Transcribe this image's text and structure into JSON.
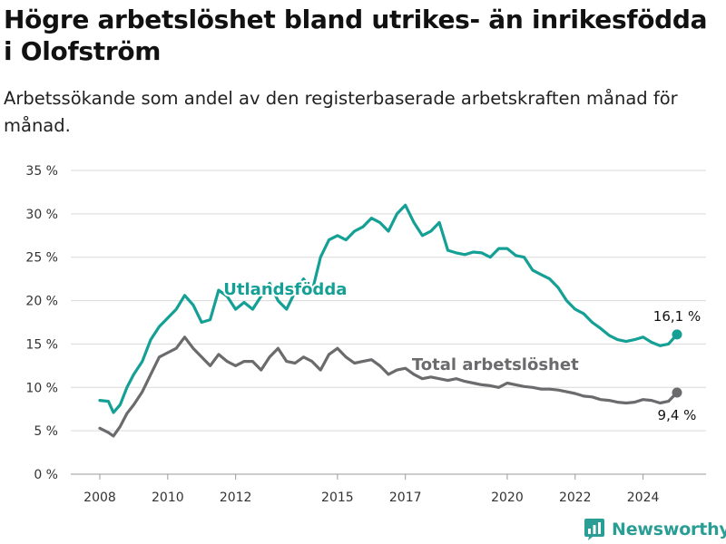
{
  "title": "Högre arbetslöshet bland utrikes- än inrikesfödda i Olofström",
  "subtitle": "Arbetssökande som andel av den registerbaserade arbetskraften månad för månad.",
  "brand": {
    "name": "Newsworthy",
    "icon": "bar-chart-icon",
    "color": "#2a9d95"
  },
  "colors": {
    "utlandsfodda": "#14a095",
    "total": "#6b6b6e",
    "grid": "#d9d9d9"
  },
  "chart_data": {
    "type": "line",
    "ylim": [
      0,
      35
    ],
    "yticks": [
      0,
      5,
      10,
      15,
      20,
      25,
      30,
      35
    ],
    "ytick_labels": [
      "0 %",
      "5 %",
      "10 %",
      "15 %",
      "20 %",
      "25 %",
      "30 %",
      "35 %"
    ],
    "xlim": [
      2007.5,
      2025.8
    ],
    "xticks": [
      2008,
      2010,
      2012,
      2015,
      2017,
      2020,
      2022,
      2024
    ],
    "xtick_labels": [
      "2008",
      "2010",
      "2012",
      "2015",
      "2017",
      "2020",
      "2022",
      "2024"
    ],
    "grid": "horizontal",
    "series": [
      {
        "name": "Utlandsfödda",
        "color": "#14a095",
        "end_label": "16,1 %",
        "points": [
          [
            2008.0,
            8.5
          ],
          [
            2008.25,
            8.4
          ],
          [
            2008.4,
            7.1
          ],
          [
            2008.6,
            8.0
          ],
          [
            2008.8,
            10.0
          ],
          [
            2009.0,
            11.5
          ],
          [
            2009.25,
            13.0
          ],
          [
            2009.5,
            15.5
          ],
          [
            2009.75,
            17.0
          ],
          [
            2010.0,
            18.0
          ],
          [
            2010.25,
            19.0
          ],
          [
            2010.5,
            20.6
          ],
          [
            2010.75,
            19.5
          ],
          [
            2011.0,
            17.5
          ],
          [
            2011.25,
            17.8
          ],
          [
            2011.5,
            21.2
          ],
          [
            2011.75,
            20.5
          ],
          [
            2012.0,
            19.0
          ],
          [
            2012.25,
            19.8
          ],
          [
            2012.5,
            19.0
          ],
          [
            2012.75,
            20.5
          ],
          [
            2013.0,
            22.0
          ],
          [
            2013.25,
            20.0
          ],
          [
            2013.5,
            19.0
          ],
          [
            2013.75,
            21.0
          ],
          [
            2014.0,
            22.5
          ],
          [
            2014.25,
            21.0
          ],
          [
            2014.5,
            25.0
          ],
          [
            2014.75,
            27.0
          ],
          [
            2015.0,
            27.5
          ],
          [
            2015.25,
            27.0
          ],
          [
            2015.5,
            28.0
          ],
          [
            2015.75,
            28.5
          ],
          [
            2016.0,
            29.5
          ],
          [
            2016.25,
            29.0
          ],
          [
            2016.5,
            28.0
          ],
          [
            2016.75,
            30.0
          ],
          [
            2017.0,
            31.0
          ],
          [
            2017.25,
            29.0
          ],
          [
            2017.5,
            27.5
          ],
          [
            2017.75,
            28.0
          ],
          [
            2018.0,
            29.0
          ],
          [
            2018.25,
            25.8
          ],
          [
            2018.5,
            25.5
          ],
          [
            2018.75,
            25.3
          ],
          [
            2019.0,
            25.6
          ],
          [
            2019.25,
            25.5
          ],
          [
            2019.5,
            25.0
          ],
          [
            2019.75,
            26.0
          ],
          [
            2020.0,
            26.0
          ],
          [
            2020.25,
            25.2
          ],
          [
            2020.5,
            25.0
          ],
          [
            2020.75,
            23.5
          ],
          [
            2021.0,
            23.0
          ],
          [
            2021.25,
            22.5
          ],
          [
            2021.5,
            21.5
          ],
          [
            2021.75,
            20.0
          ],
          [
            2022.0,
            19.0
          ],
          [
            2022.25,
            18.5
          ],
          [
            2022.5,
            17.5
          ],
          [
            2022.75,
            16.8
          ],
          [
            2023.0,
            16.0
          ],
          [
            2023.25,
            15.5
          ],
          [
            2023.5,
            15.3
          ],
          [
            2023.75,
            15.5
          ],
          [
            2024.0,
            15.8
          ],
          [
            2024.25,
            15.2
          ],
          [
            2024.5,
            14.8
          ],
          [
            2024.75,
            15.0
          ],
          [
            2025.0,
            16.1
          ]
        ]
      },
      {
        "name": "Total arbetslöshet",
        "color": "#6b6b6e",
        "end_label": "9,4 %",
        "points": [
          [
            2008.0,
            5.3
          ],
          [
            2008.25,
            4.8
          ],
          [
            2008.4,
            4.4
          ],
          [
            2008.6,
            5.5
          ],
          [
            2008.8,
            7.0
          ],
          [
            2009.0,
            8.0
          ],
          [
            2009.25,
            9.5
          ],
          [
            2009.5,
            11.5
          ],
          [
            2009.75,
            13.5
          ],
          [
            2010.0,
            14.0
          ],
          [
            2010.25,
            14.5
          ],
          [
            2010.5,
            15.8
          ],
          [
            2010.75,
            14.5
          ],
          [
            2011.0,
            13.5
          ],
          [
            2011.25,
            12.5
          ],
          [
            2011.5,
            13.8
          ],
          [
            2011.75,
            13.0
          ],
          [
            2012.0,
            12.5
          ],
          [
            2012.25,
            13.0
          ],
          [
            2012.5,
            13.0
          ],
          [
            2012.75,
            12.0
          ],
          [
            2013.0,
            13.5
          ],
          [
            2013.25,
            14.5
          ],
          [
            2013.5,
            13.0
          ],
          [
            2013.75,
            12.8
          ],
          [
            2014.0,
            13.5
          ],
          [
            2014.25,
            13.0
          ],
          [
            2014.5,
            12.0
          ],
          [
            2014.75,
            13.8
          ],
          [
            2015.0,
            14.5
          ],
          [
            2015.25,
            13.5
          ],
          [
            2015.5,
            12.8
          ],
          [
            2015.75,
            13.0
          ],
          [
            2016.0,
            13.2
          ],
          [
            2016.25,
            12.5
          ],
          [
            2016.5,
            11.5
          ],
          [
            2016.75,
            12.0
          ],
          [
            2017.0,
            12.2
          ],
          [
            2017.25,
            11.5
          ],
          [
            2017.5,
            11.0
          ],
          [
            2017.75,
            11.2
          ],
          [
            2018.0,
            11.0
          ],
          [
            2018.25,
            10.8
          ],
          [
            2018.5,
            11.0
          ],
          [
            2018.75,
            10.7
          ],
          [
            2019.0,
            10.5
          ],
          [
            2019.25,
            10.3
          ],
          [
            2019.5,
            10.2
          ],
          [
            2019.75,
            10.0
          ],
          [
            2020.0,
            10.5
          ],
          [
            2020.25,
            10.3
          ],
          [
            2020.5,
            10.1
          ],
          [
            2020.75,
            10.0
          ],
          [
            2021.0,
            9.8
          ],
          [
            2021.25,
            9.8
          ],
          [
            2021.5,
            9.7
          ],
          [
            2021.75,
            9.5
          ],
          [
            2022.0,
            9.3
          ],
          [
            2022.25,
            9.0
          ],
          [
            2022.5,
            8.9
          ],
          [
            2022.75,
            8.6
          ],
          [
            2023.0,
            8.5
          ],
          [
            2023.25,
            8.3
          ],
          [
            2023.5,
            8.2
          ],
          [
            2023.75,
            8.3
          ],
          [
            2024.0,
            8.6
          ],
          [
            2024.25,
            8.5
          ],
          [
            2024.5,
            8.2
          ],
          [
            2024.75,
            8.4
          ],
          [
            2025.0,
            9.4
          ]
        ]
      }
    ],
    "annotations": [
      {
        "text": "Utlandsfödda",
        "series": 0,
        "at_x": 2011.75
      },
      {
        "text": "Total arbetslöshet",
        "series": 1,
        "at_x": 2017.3
      }
    ]
  }
}
